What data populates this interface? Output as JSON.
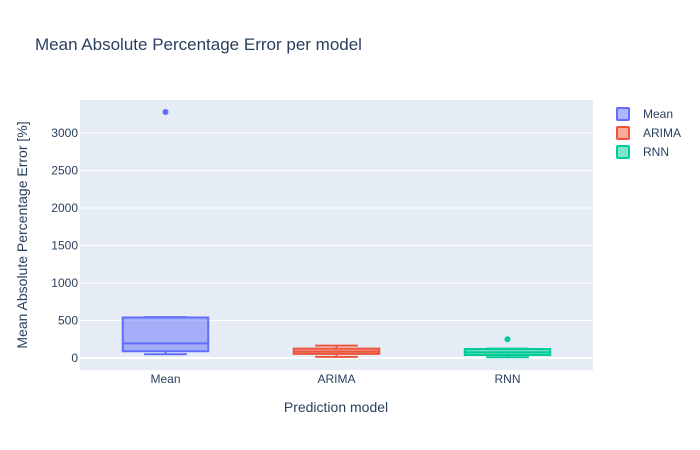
{
  "chart_data": {
    "type": "box",
    "title": "Mean Absolute Percentage Error per model",
    "xlabel": "Prediction model",
    "ylabel": "Mean Absolute Percentage Error [%]",
    "categories": [
      "Mean",
      "ARIMA",
      "RNN"
    ],
    "ylim": [
      -160,
      3440
    ],
    "yticks": [
      0,
      500,
      1000,
      1500,
      2000,
      2500,
      3000
    ],
    "ytick_labels": [
      "0",
      "500",
      "1000",
      "1500",
      "2000",
      "2500",
      "3000"
    ],
    "grid": true,
    "legend_position": "top-right",
    "series": [
      {
        "name": "Mean",
        "color": "#636efa",
        "min": 50,
        "q1": 90,
        "median": 195,
        "q3": 540,
        "max": 545,
        "outliers": [
          3280
        ]
      },
      {
        "name": "ARIMA",
        "color": "#ef553b",
        "min": 15,
        "q1": 55,
        "median": 85,
        "q3": 125,
        "max": 165,
        "outliers": []
      },
      {
        "name": "RNN",
        "color": "#00cc96",
        "min": 10,
        "q1": 40,
        "median": 75,
        "q3": 120,
        "max": 125,
        "outliers": [
          250
        ]
      }
    ]
  }
}
